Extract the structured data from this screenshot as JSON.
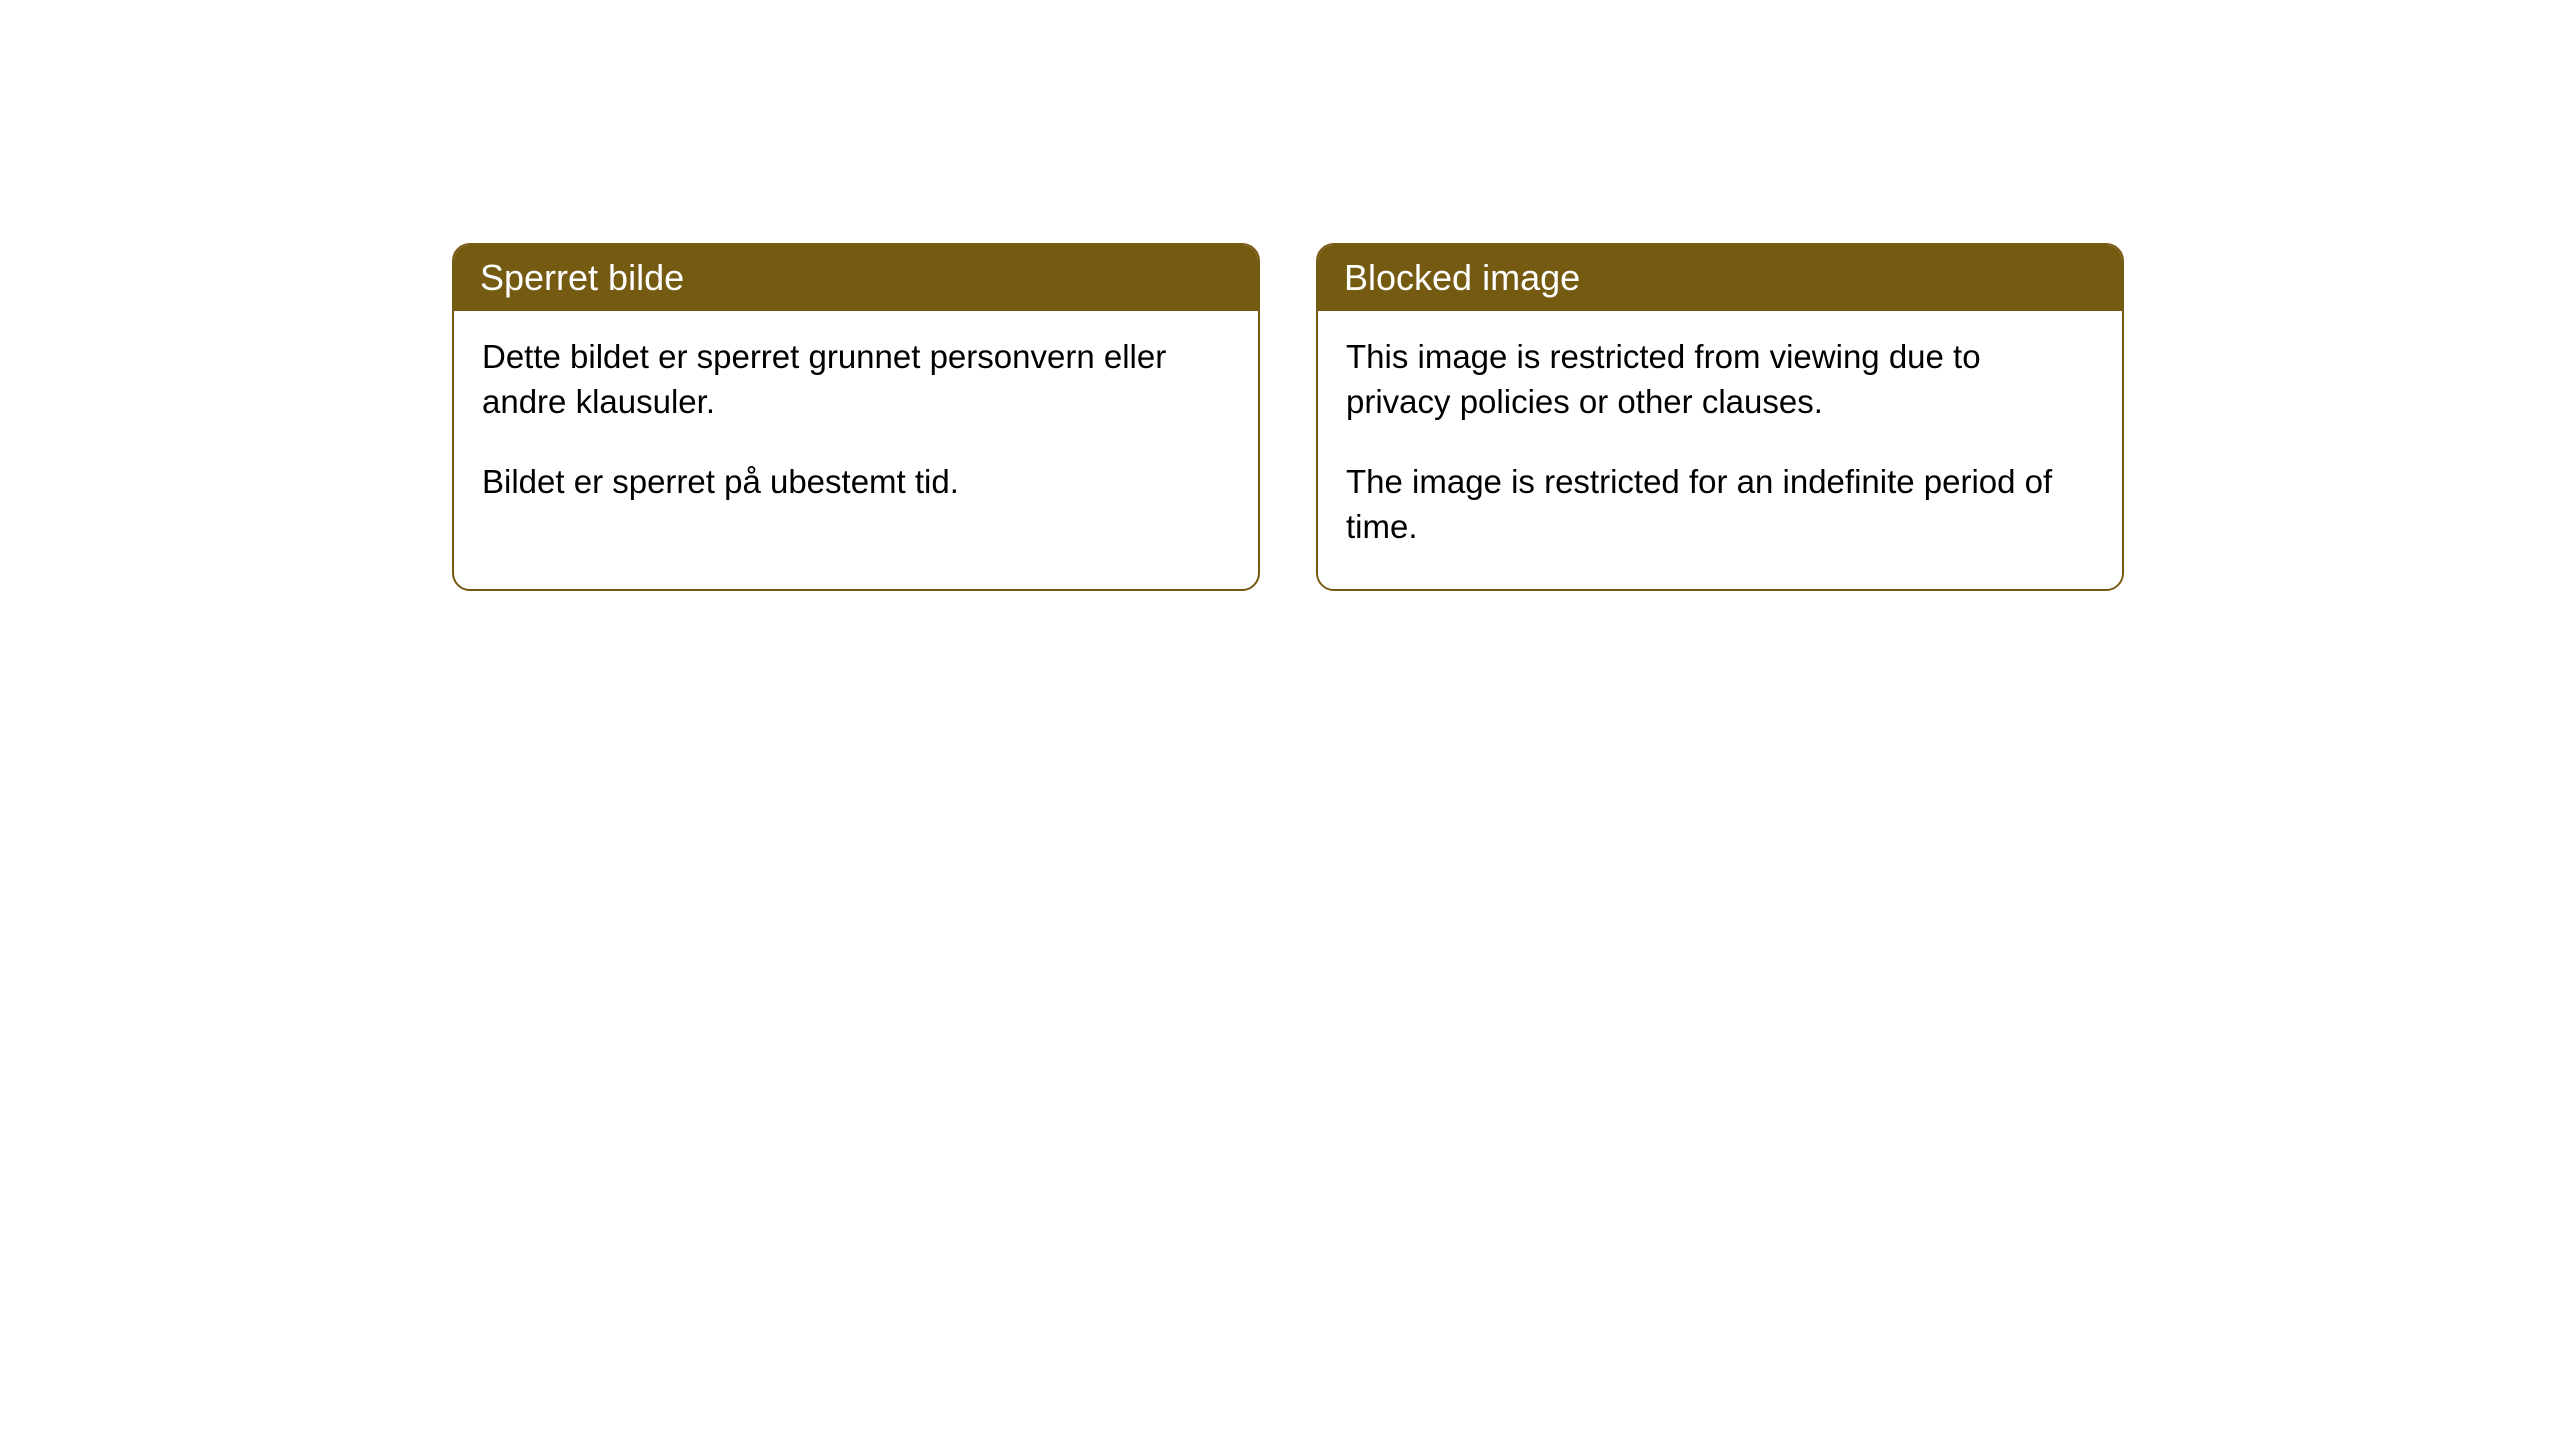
{
  "cards": [
    {
      "title": "Sperret bilde",
      "paragraph1": "Dette bildet er sperret grunnet personvern eller andre klausuler.",
      "paragraph2": "Bildet er sperret på ubestemt tid."
    },
    {
      "title": "Blocked image",
      "paragraph1": "This image is restricted from viewing due to privacy policies or other clauses.",
      "paragraph2": "The image is restricted for an indefinite period of time."
    }
  ],
  "styling": {
    "header_bg_color": "#755a12",
    "header_text_color": "#ffffff",
    "card_border_color": "#755a12",
    "card_bg_color": "#ffffff",
    "body_text_color": "#000000",
    "page_bg_color": "#ffffff",
    "card_border_radius": 18,
    "header_fontsize": 36,
    "body_fontsize": 33
  }
}
